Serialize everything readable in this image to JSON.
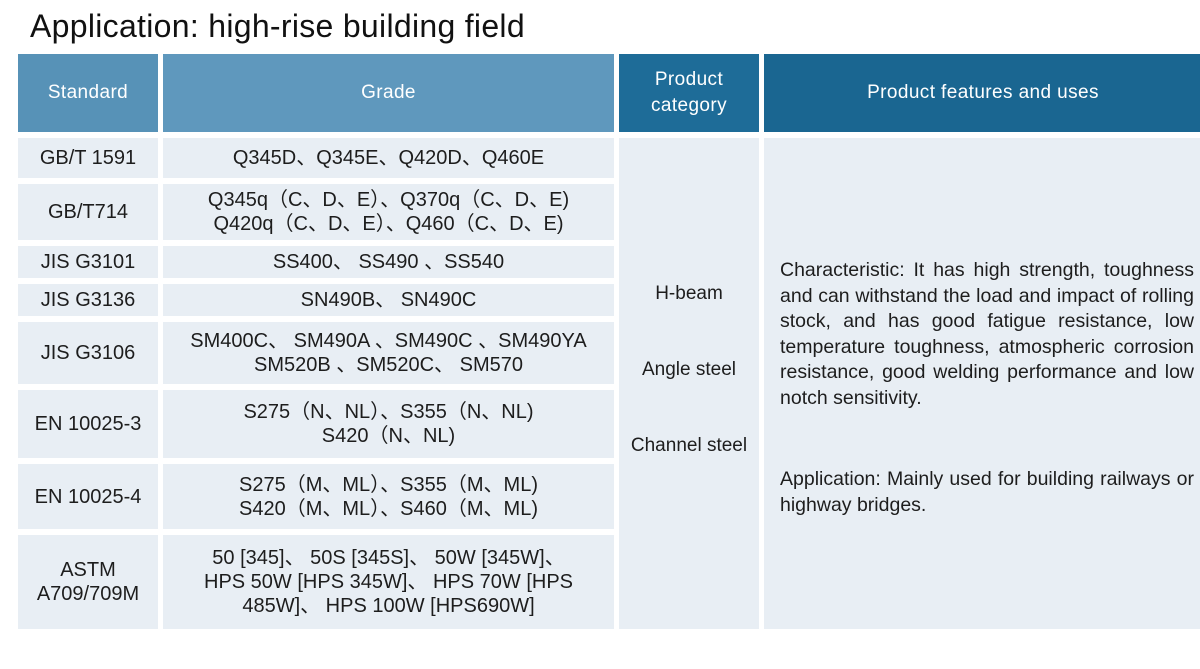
{
  "title": "Application: high-rise building field",
  "headers": {
    "standard": "Standard",
    "grade": "Grade",
    "category_line1": "Product",
    "category_line2": "category",
    "features": "Product features and uses"
  },
  "rows": [
    {
      "standard": "GB/T 1591",
      "grade": [
        "Q345D、Q345E、Q420D、Q460E"
      ]
    },
    {
      "standard": "GB/T714",
      "grade": [
        "Q345q（C、D、E）、Q370q（C、D、E)",
        "Q420q（C、D、E）、Q460（C、D、E)"
      ]
    },
    {
      "standard": "JIS G3101",
      "grade": [
        "SS400、 SS490 、SS540"
      ]
    },
    {
      "standard": "JIS G3136",
      "grade": [
        "SN490B、 SN490C"
      ]
    },
    {
      "standard": "JIS G3106",
      "grade": [
        "SM400C、 SM490A 、SM490C 、SM490YA",
        "SM520B 、SM520C、 SM570"
      ]
    },
    {
      "standard": "EN 10025-3",
      "grade": [
        "S275（N、NL）、S355（N、NL)",
        "S420（N、NL)"
      ]
    },
    {
      "standard": "EN 10025-4",
      "grade": [
        "S275（M、ML）、S355（M、ML)",
        "S420（M、ML）、S460（M、ML)"
      ]
    },
    {
      "standard_line1": "ASTM",
      "standard_line2": "A709/709M",
      "grade": [
        "50 [345]、 50S [345S]、 50W [345W]、",
        "HPS 50W [HPS 345W]、 HPS 70W [HPS",
        "485W]、 HPS 100W [HPS690W]"
      ]
    }
  ],
  "categories": [
    "H-beam",
    "Angle steel",
    "Channel steel"
  ],
  "features": {
    "characteristic": "Characteristic: It has high strength, toughness and can withstand the load and impact of rolling stock, and has good fatigue resistance, low temperature toughness, atmospheric corrosion resistance, good welding performance and low notch sensitivity.",
    "application": "Application: Mainly used for building railways or highway bridges."
  }
}
